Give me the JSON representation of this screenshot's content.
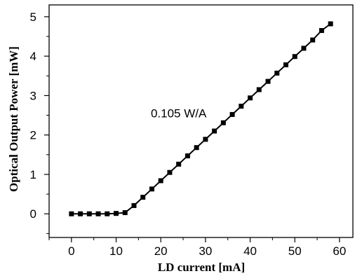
{
  "chart_data": {
    "type": "line",
    "xlabel": "LD current [mA]",
    "ylabel": "Optical Output Power [mW]",
    "xlim": [
      -5,
      63
    ],
    "ylim": [
      -0.6,
      5.3
    ],
    "xticks": [
      0,
      10,
      20,
      30,
      40,
      50,
      60
    ],
    "yticks": [
      0,
      1,
      2,
      3,
      4,
      5
    ],
    "grid": false,
    "marker": "square",
    "annotations": [
      {
        "text": "0.105 W/A",
        "x": 24,
        "y": 2.45
      }
    ],
    "series": [
      {
        "x": [
          0,
          2,
          4,
          6,
          8,
          10,
          12,
          14,
          16,
          18,
          20,
          22,
          24,
          26,
          28,
          30,
          32,
          34,
          36,
          38,
          40,
          42,
          44,
          46,
          48,
          50,
          52,
          54,
          56,
          58
        ],
        "values": [
          0.0,
          0.0,
          0.0,
          0.0,
          0.0,
          0.01,
          0.03,
          0.21,
          0.42,
          0.63,
          0.84,
          1.05,
          1.26,
          1.47,
          1.68,
          1.89,
          2.1,
          2.31,
          2.52,
          2.73,
          2.94,
          3.15,
          3.36,
          3.57,
          3.78,
          3.99,
          4.2,
          4.41,
          4.65,
          4.82
        ]
      }
    ]
  }
}
